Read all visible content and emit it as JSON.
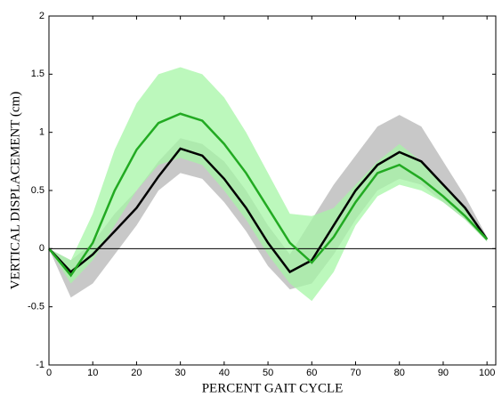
{
  "chart_data": {
    "type": "line",
    "x_label": "PERCENT GAIT CYCLE",
    "y_label": "VERTICAL DISPLACEMENT (cm)",
    "x": [
      0,
      5,
      10,
      15,
      20,
      25,
      30,
      35,
      40,
      45,
      50,
      55,
      60,
      65,
      70,
      75,
      80,
      85,
      90,
      95,
      100
    ],
    "bands": [
      {
        "color": "#c8c8c8",
        "upper": [
          0,
          -0.1,
          0.05,
          0.3,
          0.5,
          0.75,
          0.95,
          0.9,
          0.75,
          0.5,
          0.2,
          -0.05,
          0.25,
          0.55,
          0.8,
          1.05,
          1.15,
          1.05,
          0.75,
          0.45,
          0.1
        ],
        "lower": [
          0,
          -0.42,
          -0.3,
          -0.05,
          0.2,
          0.5,
          0.65,
          0.6,
          0.4,
          0.15,
          -0.15,
          -0.35,
          -0.3,
          -0.05,
          0.25,
          0.5,
          0.6,
          0.55,
          0.4,
          0.25,
          0.06
        ]
      },
      {
        "color": "#a6f5a6",
        "upper": [
          0,
          -0.1,
          0.3,
          0.85,
          1.25,
          1.5,
          1.56,
          1.5,
          1.3,
          1.0,
          0.65,
          0.3,
          0.28,
          0.35,
          0.55,
          0.75,
          0.9,
          0.75,
          0.55,
          0.35,
          0.1
        ],
        "lower": [
          0,
          -0.3,
          -0.1,
          0.2,
          0.5,
          0.72,
          0.78,
          0.72,
          0.5,
          0.25,
          -0.05,
          -0.3,
          -0.45,
          -0.2,
          0.2,
          0.45,
          0.55,
          0.5,
          0.4,
          0.25,
          0.06
        ]
      }
    ],
    "series": [
      {
        "color": "#000000",
        "values": [
          0,
          -0.2,
          -0.05,
          0.15,
          0.35,
          0.62,
          0.86,
          0.8,
          0.6,
          0.35,
          0.05,
          -0.2,
          -0.1,
          0.2,
          0.5,
          0.72,
          0.83,
          0.75,
          0.55,
          0.35,
          0.08
        ]
      },
      {
        "color": "#22aa22",
        "values": [
          0,
          -0.23,
          0.05,
          0.5,
          0.85,
          1.08,
          1.16,
          1.1,
          0.9,
          0.65,
          0.35,
          0.05,
          -0.12,
          0.1,
          0.4,
          0.65,
          0.72,
          0.6,
          0.45,
          0.28,
          0.08
        ]
      }
    ],
    "hline": 0,
    "xlim": [
      0,
      102
    ],
    "ylim": [
      -1,
      2
    ],
    "xticks": [
      0,
      10,
      20,
      30,
      40,
      50,
      60,
      70,
      80,
      90,
      100
    ],
    "yticks": [
      -1,
      -0.5,
      0,
      0.5,
      1,
      1.5,
      2
    ]
  }
}
